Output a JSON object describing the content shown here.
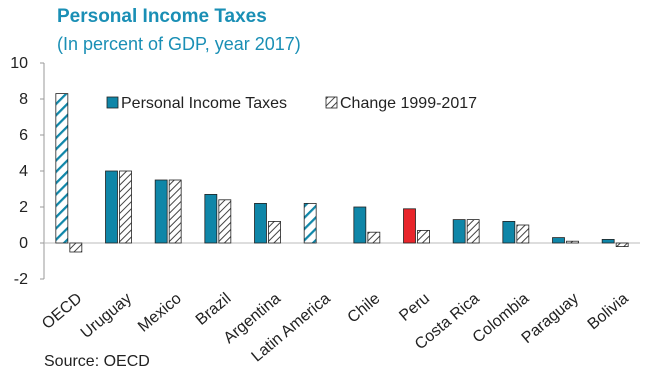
{
  "chart_data": {
    "type": "bar",
    "title": "Personal Income Taxes",
    "subtitle": "(In percent of GDP, year 2017)",
    "source": "Source: OECD",
    "categories": [
      "OECD",
      "Uruguay",
      "Mexico",
      "Brazil",
      "Argentina",
      "Latin America",
      "Chile",
      "Peru",
      "Costa Rica",
      "Colombia",
      "Paraguay",
      "Bolivia"
    ],
    "series": [
      {
        "name": "Personal Income Taxes",
        "values": [
          8.3,
          4.0,
          3.5,
          2.7,
          2.2,
          2.2,
          2.0,
          1.9,
          1.3,
          1.2,
          0.3,
          0.2
        ]
      },
      {
        "name": "Change 1999-2017",
        "values": [
          -0.5,
          4.0,
          3.5,
          2.4,
          1.2,
          null,
          0.6,
          0.7,
          1.3,
          1.0,
          0.1,
          -0.2
        ]
      }
    ],
    "ylim": [
      -2,
      10
    ],
    "yticks": [
      -2,
      0,
      2,
      4,
      6,
      8,
      10
    ],
    "legend_position": "top",
    "grid": false,
    "colors": {
      "primary": "#0f86a8",
      "highlight": "#e8252b",
      "hatch_fill": "#ffffff",
      "hatch_stroke": "#444444"
    },
    "highlight_category": "Peru",
    "hatched_blue_categories": [
      "OECD",
      "Latin America"
    ]
  }
}
